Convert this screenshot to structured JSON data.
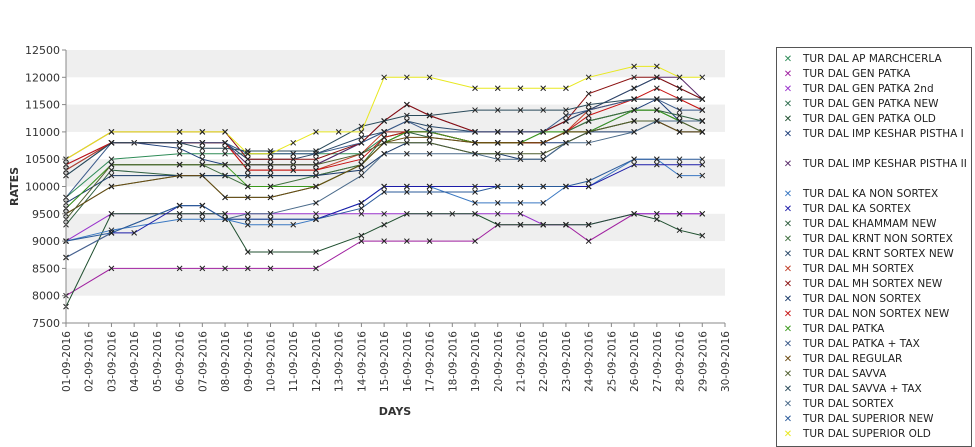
{
  "chart_data": {
    "type": "line",
    "title": "",
    "xlabel": "DAYS",
    "ylabel": "RATES",
    "ylim": [
      7500,
      12500
    ],
    "yticks": [
      7500,
      8000,
      8500,
      9000,
      9500,
      10000,
      10500,
      11000,
      11500,
      12000,
      12500
    ],
    "categories": [
      "01-09-2016",
      "02-09-2016",
      "03-09-2016",
      "04-09-2016",
      "05-09-2016",
      "06-09-2016",
      "07-09-2016",
      "08-09-2016",
      "09-09-2016",
      "10-09-2016",
      "11-09-2016",
      "12-09-2016",
      "13-09-2016",
      "14-09-2016",
      "15-09-2016",
      "16-09-2016",
      "17-09-2016",
      "18-09-2016",
      "19-09-2016",
      "20-09-2016",
      "21-09-2016",
      "22-09-2016",
      "23-09-2016",
      "24-09-2016",
      "25-09-2016",
      "26-09-2016",
      "27-09-2016",
      "28-09-2016",
      "29-09-2016",
      "30-09-2016"
    ],
    "grid": "horizontal bands",
    "legend_position": "right",
    "series": [
      {
        "name": "TUR DAL AP MARCHCERLA",
        "color": "#2e8b57",
        "values": [
          9800,
          null,
          10500,
          null,
          null,
          10600,
          10600,
          10600,
          10600,
          10600,
          10600,
          10600,
          null,
          10600,
          10900,
          11000,
          11000,
          null,
          10800,
          10800,
          10800,
          10800,
          11000,
          11200,
          null,
          11400,
          11400,
          11200,
          11200,
          null
        ]
      },
      {
        "name": "TUR DAL GEN PATKA",
        "color": "#a020a0",
        "values": [
          8000,
          null,
          8500,
          null,
          null,
          8500,
          8500,
          8500,
          8500,
          8500,
          null,
          8500,
          null,
          9000,
          9000,
          9000,
          9000,
          null,
          9000,
          9300,
          9300,
          9300,
          9300,
          9000,
          null,
          9500,
          9500,
          9500,
          9500,
          null
        ]
      },
      {
        "name": "TUR DAL GEN PATKA 2nd",
        "color": "#9932cc",
        "values": [
          9000,
          null,
          9500,
          null,
          null,
          9500,
          9500,
          9500,
          9500,
          9500,
          null,
          9500,
          null,
          9500,
          9500,
          9500,
          9500,
          null,
          9500,
          9500,
          9500,
          9300,
          9300,
          9300,
          null,
          9500,
          9500,
          9500,
          9500,
          null
        ]
      },
      {
        "name": "TUR DAL GEN PATKA NEW",
        "color": "#2f6f4f",
        "values": [
          9500,
          null,
          10000,
          null,
          null,
          10200,
          10200,
          9800,
          9800,
          9800,
          null,
          10000,
          null,
          10400,
          10800,
          11000,
          11000,
          null,
          10800,
          10800,
          10800,
          10800,
          11000,
          11000,
          null,
          11200,
          11200,
          11000,
          11000,
          null
        ]
      },
      {
        "name": "TUR DAL GEN PATKA OLD",
        "color": "#1f4f2f",
        "values": [
          7800,
          null,
          9500,
          null,
          null,
          9500,
          9500,
          9500,
          8800,
          8800,
          null,
          8800,
          null,
          9100,
          9300,
          9500,
          9500,
          9500,
          9500,
          9300,
          9300,
          9300,
          9300,
          9300,
          null,
          9500,
          9400,
          9200,
          9100,
          null
        ]
      },
      {
        "name": "TUR DAL IMP KESHAR PISTHA I",
        "color": "#1e3f7a",
        "values": [
          10300,
          null,
          10800,
          10800,
          null,
          10700,
          10500,
          10400,
          10400,
          10400,
          10400,
          10400,
          null,
          10800,
          11000,
          11000,
          11000,
          null,
          10800,
          10800,
          10800,
          10800,
          10800,
          11000,
          null,
          11400,
          11600,
          11200,
          11200,
          null
        ]
      },
      {
        "name": "TUR DAL IMP KESHAR PISTHA II",
        "color": "#5a2a6a",
        "values": [
          10400,
          null,
          10800,
          10800,
          null,
          10800,
          10800,
          10800,
          10400,
          10400,
          10400,
          10400,
          null,
          10800,
          11200,
          11500,
          11300,
          null,
          11000,
          11000,
          11000,
          11000,
          11200,
          11400,
          null,
          11800,
          12000,
          12000,
          11600,
          null
        ]
      },
      {
        "name": "TUR DAL KA NON SORTEX",
        "color": "#3a78c2",
        "values": [
          9000,
          null,
          9200,
          null,
          null,
          9400,
          9400,
          9400,
          9300,
          9300,
          9300,
          9400,
          null,
          9700,
          10000,
          10000,
          10000,
          null,
          9700,
          9700,
          9700,
          9700,
          10000,
          10000,
          null,
          10500,
          10500,
          10200,
          10200,
          null
        ]
      },
      {
        "name": "TUR DAL KA SORTEX",
        "color": "#1c1ca8",
        "values": [
          8700,
          null,
          9150,
          9150,
          null,
          9650,
          9650,
          9400,
          9400,
          9400,
          null,
          9400,
          null,
          9700,
          10000,
          10000,
          10000,
          null,
          10000,
          10000,
          10000,
          10000,
          10000,
          10000,
          null,
          10400,
          10400,
          10400,
          10400,
          null
        ]
      },
      {
        "name": "TUR DAL KHAMMAM NEW",
        "color": "#2f5f3f",
        "values": [
          9300,
          null,
          10300,
          null,
          null,
          10200,
          10200,
          10200,
          10200,
          10200,
          null,
          10200,
          null,
          10400,
          10800,
          11000,
          10900,
          null,
          10800,
          10800,
          10800,
          10800,
          11000,
          11200,
          null,
          11400,
          11400,
          11300,
          11200,
          null
        ]
      },
      {
        "name": "TUR DAL KRNT NON SORTEX",
        "color": "#3f6f3f",
        "values": [
          9600,
          null,
          10400,
          null,
          null,
          10400,
          10400,
          10200,
          10000,
          10000,
          null,
          10200,
          null,
          10400,
          10900,
          11000,
          11000,
          null,
          10800,
          10800,
          10800,
          11000,
          11000,
          11200,
          null,
          11400,
          11400,
          11200,
          11000,
          null
        ]
      },
      {
        "name": "TUR DAL KRNT SORTEX NEW",
        "color": "#2a4a6a",
        "values": [
          10200,
          null,
          10800,
          null,
          null,
          10800,
          10800,
          10800,
          10500,
          10500,
          10500,
          10600,
          null,
          10900,
          11000,
          11200,
          11100,
          null,
          11000,
          11000,
          11000,
          11000,
          11200,
          11400,
          null,
          11800,
          12000,
          11800,
          11600,
          null
        ]
      },
      {
        "name": "TUR DAL MH SORTEX",
        "color": "#c0402a",
        "values": [
          10300,
          null,
          10800,
          null,
          null,
          10800,
          10800,
          10800,
          10300,
          10300,
          10300,
          10300,
          null,
          10600,
          11000,
          11000,
          11000,
          null,
          10800,
          10800,
          10800,
          10800,
          11000,
          11400,
          null,
          11600,
          11600,
          11600,
          11400,
          null
        ]
      },
      {
        "name": "TUR DAL MH SORTEX NEW",
        "color": "#8b1010",
        "values": [
          10500,
          null,
          11000,
          null,
          null,
          11000,
          11000,
          11000,
          10500,
          10500,
          10500,
          10500,
          null,
          10800,
          11200,
          11500,
          11300,
          null,
          11000,
          11000,
          11000,
          11000,
          11200,
          11700,
          null,
          12000,
          12000,
          11800,
          11600,
          null
        ]
      },
      {
        "name": "TUR DAL NON SORTEX",
        "color": "#1a3a6a",
        "values": [
          9700,
          null,
          10200,
          null,
          null,
          10200,
          10200,
          10200,
          10200,
          10200,
          null,
          10200,
          null,
          10300,
          10600,
          10800,
          10800,
          null,
          10600,
          10600,
          10500,
          10500,
          10800,
          11000,
          null,
          11000,
          11200,
          11000,
          11000,
          null
        ]
      },
      {
        "name": "TUR DAL NON SORTEX NEW",
        "color": "#c81414",
        "values": [
          10400,
          null,
          10800,
          null,
          null,
          10800,
          10800,
          10800,
          10300,
          10300,
          10300,
          10300,
          null,
          10500,
          10900,
          11000,
          11000,
          null,
          10800,
          10800,
          10800,
          10800,
          11000,
          11300,
          null,
          11600,
          11800,
          11600,
          11400,
          null
        ]
      },
      {
        "name": "TUR DAL PATKA",
        "color": "#3c9a1e",
        "values": [
          9600,
          null,
          10400,
          null,
          null,
          10400,
          10400,
          10400,
          10000,
          10000,
          null,
          10000,
          null,
          10400,
          10800,
          11000,
          11000,
          null,
          10800,
          10800,
          10800,
          11000,
          11000,
          11000,
          null,
          11400,
          11400,
          11200,
          11200,
          null
        ]
      },
      {
        "name": "TUR DAL PATKA + TAX",
        "color": "#3a5a8a",
        "values": [
          9800,
          null,
          10800,
          null,
          null,
          10800,
          10800,
          10800,
          10600,
          10600,
          10600,
          10600,
          null,
          10800,
          11000,
          11200,
          11000,
          null,
          11000,
          11000,
          11000,
          11000,
          11300,
          11400,
          null,
          11600,
          11600,
          11400,
          11400,
          null
        ]
      },
      {
        "name": "TUR DAL REGULAR",
        "color": "#6b4a10",
        "values": [
          9500,
          null,
          10000,
          null,
          null,
          10200,
          10200,
          9800,
          9800,
          9800,
          null,
          10000,
          null,
          10400,
          10800,
          10900,
          10900,
          null,
          10800,
          10800,
          10800,
          10800,
          11000,
          11000,
          null,
          11200,
          11200,
          11000,
          11000,
          null
        ]
      },
      {
        "name": "TUR DAL SAVVA",
        "color": "#4f5f2f",
        "values": [
          9400,
          null,
          10400,
          null,
          null,
          10400,
          10400,
          10400,
          10400,
          10400,
          null,
          10400,
          null,
          10600,
          10800,
          10800,
          10800,
          null,
          10600,
          10600,
          10600,
          10600,
          10800,
          11000,
          null,
          11200,
          11200,
          11200,
          11000,
          null
        ]
      },
      {
        "name": "TUR DAL SAVVA + TAX",
        "color": "#2a4a5a",
        "values": [
          10200,
          null,
          10800,
          null,
          null,
          10800,
          10700,
          10700,
          10650,
          10650,
          null,
          10650,
          null,
          11100,
          11200,
          11300,
          11300,
          null,
          11400,
          11400,
          11400,
          11400,
          11400,
          11500,
          null,
          11600,
          11600,
          11600,
          11600,
          null
        ]
      },
      {
        "name": "TUR DAL SORTEX",
        "color": "#4a6a8a",
        "values": [
          8700,
          null,
          9150,
          null,
          null,
          9650,
          9650,
          9400,
          9500,
          9500,
          null,
          9700,
          null,
          10200,
          10600,
          10600,
          10600,
          null,
          10600,
          10500,
          10500,
          10500,
          10800,
          10800,
          null,
          11000,
          11200,
          11200,
          11200,
          null
        ]
      },
      {
        "name": "TUR DAL SUPERIOR NEW",
        "color": "#2a5a9a",
        "values": [
          9000,
          null,
          9150,
          null,
          null,
          9650,
          9650,
          9400,
          9400,
          9400,
          null,
          9400,
          null,
          9600,
          9900,
          9900,
          9900,
          null,
          9900,
          10000,
          10000,
          10000,
          10000,
          10100,
          null,
          10500,
          10500,
          10500,
          10500,
          null
        ]
      },
      {
        "name": "TUR DAL SUPERIOR OLD",
        "color": "#e8e820",
        "values": [
          10500,
          null,
          11000,
          null,
          null,
          11000,
          11000,
          11000,
          10600,
          10600,
          10800,
          11000,
          11000,
          11000,
          12000,
          12000,
          12000,
          null,
          11800,
          11800,
          11800,
          11800,
          11800,
          12000,
          null,
          12200,
          12200,
          12000,
          12000,
          null
        ]
      }
    ]
  }
}
